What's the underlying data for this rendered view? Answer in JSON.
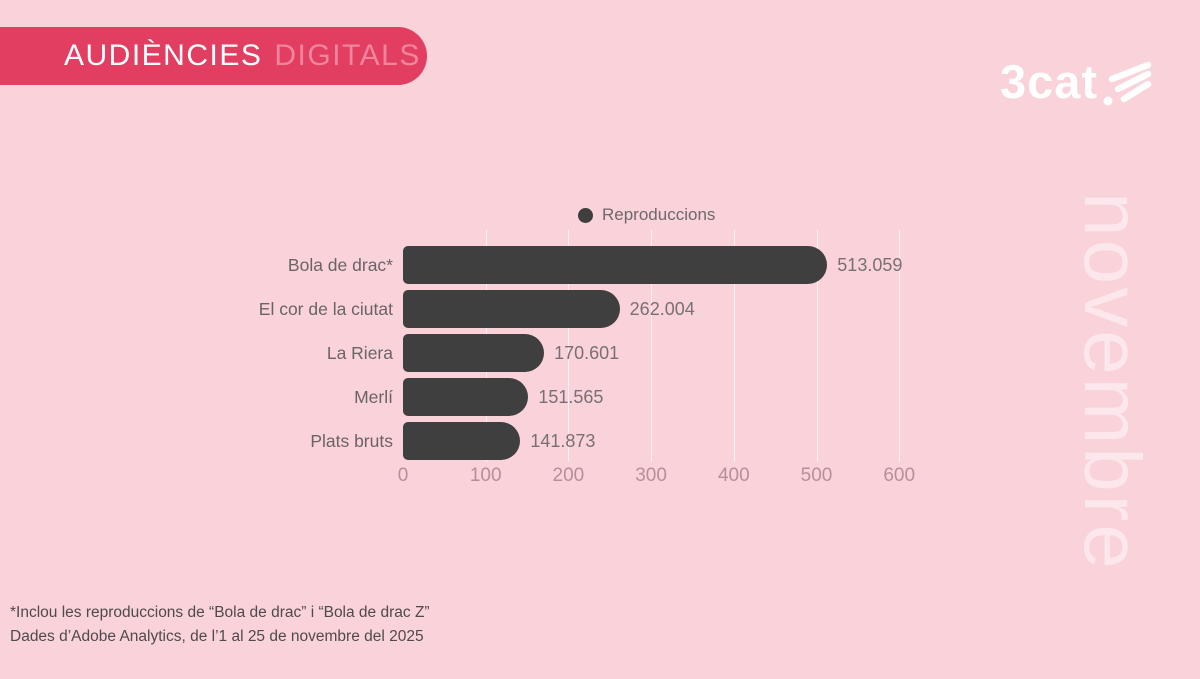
{
  "header": {
    "title_primary": "AUDIÈNCIES",
    "title_secondary": "DIGITALS"
  },
  "brand": {
    "logo_text": "3cat",
    "watermark": "novembre"
  },
  "chart_data": {
    "type": "bar",
    "orientation": "horizontal",
    "title": "",
    "legend": "Reproduccions",
    "legend_position": "top-center",
    "categories": [
      "Bola de drac*",
      "El cor de la ciutat",
      "La Riera",
      "Merlí",
      "Plats bruts"
    ],
    "values": [
      513059,
      262004,
      170601,
      151565,
      141873
    ],
    "value_labels": [
      "513.059",
      "262.004",
      "170.601",
      "151.565",
      "141.873"
    ],
    "x_ticks": [
      "0",
      "100",
      "200",
      "300",
      "400",
      "500",
      "600"
    ],
    "x_tick_values": [
      0,
      100000,
      200000,
      300000,
      400000,
      500000,
      600000
    ],
    "xlim": [
      0,
      600000
    ],
    "x_scale_note": "tick labels in thousands",
    "grid": "vertical",
    "bar_color": "#3f3f3f"
  },
  "footnotes": [
    "*Inclou les reproduccions de “Bola de drac” i “Bola de drac Z”",
    "Dades d’Adobe Analytics, de l’1 al 25 de novembre del 2025"
  ],
  "colors": {
    "background": "#f9d2da",
    "badge": "#e23e62",
    "badge_text_primary": "#ffffff",
    "badge_text_secondary": "#f0849c",
    "bar": "#3f3f3f",
    "category_label": "#6b6467",
    "value_label": "#797074",
    "tick_label": "#b58f99",
    "gridline": "rgba(255,255,255,0.65)",
    "footnote": "#4f4a4c",
    "watermark": "rgba(255,255,255,0.48)",
    "logo": "#ffffff"
  }
}
